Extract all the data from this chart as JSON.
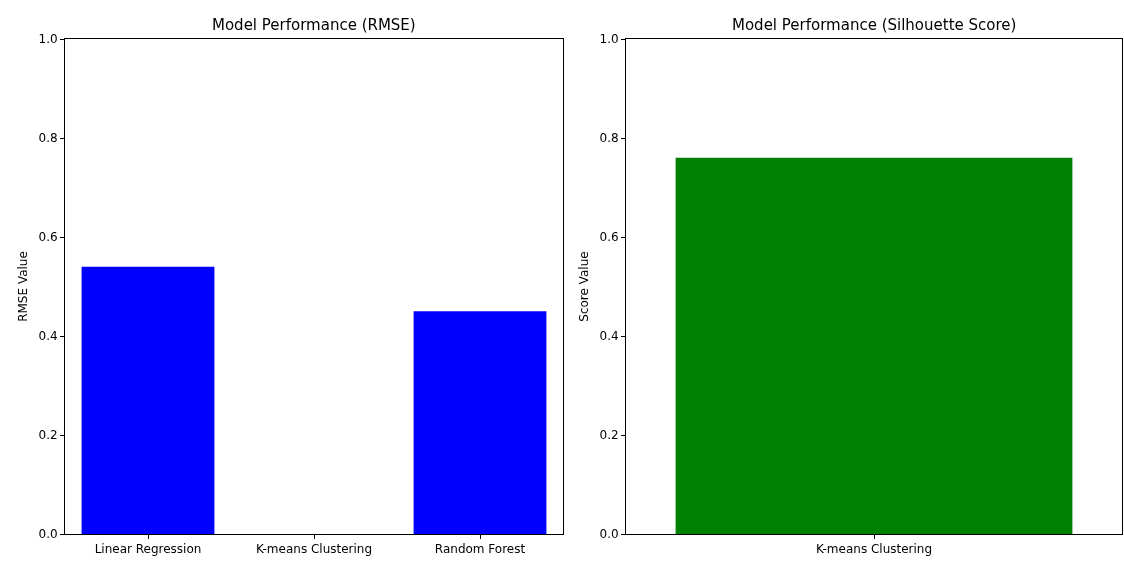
{
  "chart_data": [
    {
      "type": "bar",
      "title": "Model Performance (RMSE)",
      "ylabel": "RMSE Value",
      "categories": [
        "Linear Regression",
        "K-means Clustering",
        "Random Forest"
      ],
      "values": [
        0.54,
        null,
        0.45
      ],
      "color": "#0000ff",
      "ylim": [
        0,
        1
      ],
      "yticks": [
        {
          "value": 0,
          "label": "0.0"
        },
        {
          "value": 0.2,
          "label": "0.2"
        },
        {
          "value": 0.4,
          "label": "0.4"
        },
        {
          "value": 0.6,
          "label": "0.6"
        },
        {
          "value": 0.8,
          "label": "0.8"
        },
        {
          "value": 1,
          "label": "1.0"
        }
      ]
    },
    {
      "type": "bar",
      "title": "Model Performance (Silhouette Score)",
      "ylabel": "Score Value",
      "categories": [
        "K-means Clustering"
      ],
      "values": [
        0.76
      ],
      "color": "#008000",
      "ylim": [
        0,
        1
      ],
      "yticks": [
        {
          "value": 0,
          "label": "0.0"
        },
        {
          "value": 0.2,
          "label": "0.2"
        },
        {
          "value": 0.4,
          "label": "0.4"
        },
        {
          "value": 0.6,
          "label": "0.6"
        },
        {
          "value": 0.8,
          "label": "0.8"
        },
        {
          "value": 1,
          "label": "1.0"
        }
      ]
    }
  ]
}
